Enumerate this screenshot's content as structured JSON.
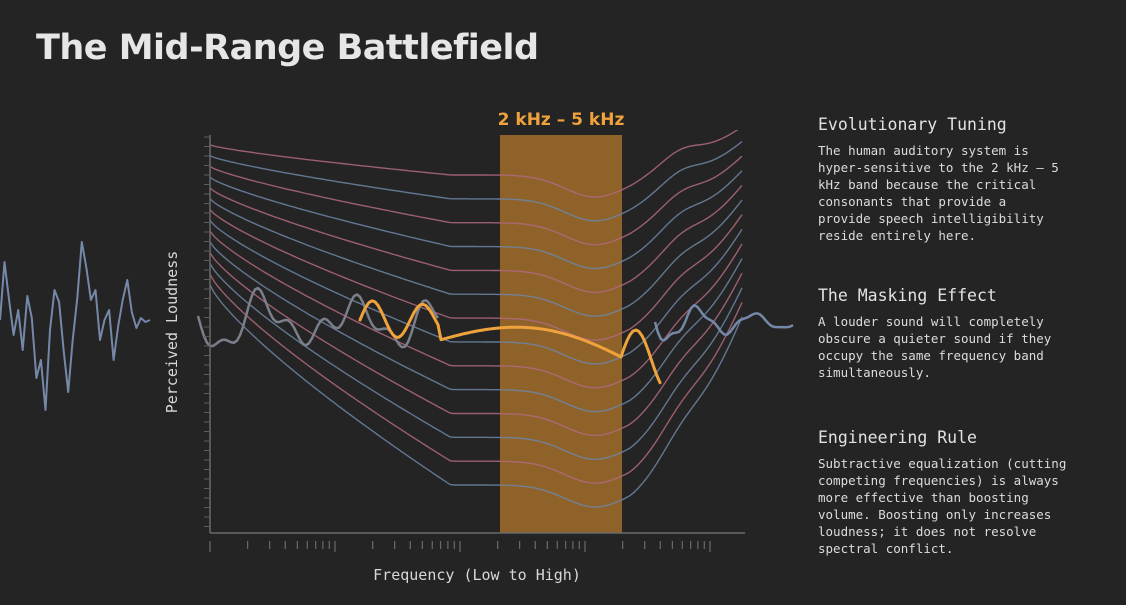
{
  "title": "The Mid-Range Battlefield",
  "diagram": {
    "band_label": "2 kHz – 5 kHz",
    "x_axis_label": "Frequency (Low to High)",
    "y_axis_label": "Perceived Loudness",
    "colors": {
      "band_fill": "#b87a2c",
      "band_text": "#f0a33c",
      "highlight_wave": "#f0a33c",
      "curve_blue": "#6f86a6",
      "curve_pink": "#b06a80",
      "waveform": "#7588a8"
    }
  },
  "sections": [
    {
      "heading": "Evolutionary Tuning",
      "body": "The human auditory system is\nhyper-sensitive to the 2 kHz – 5\nkHz band because the critical\nconsonants that provide a\nprovide speech intelligibility\nreside entirely here."
    },
    {
      "heading": "The Masking Effect",
      "body": "A louder sound will completely\nobscure a quieter sound if they\noccupy the same frequency band\nsimultaneously."
    },
    {
      "heading": "Engineering Rule",
      "body": "Subtractive equalization (cutting\ncompeting frequencies) is always\nmore effective than boosting\nvolume. Boosting only increases\nloudness; it does not resolve\nspectral conflict."
    }
  ]
}
